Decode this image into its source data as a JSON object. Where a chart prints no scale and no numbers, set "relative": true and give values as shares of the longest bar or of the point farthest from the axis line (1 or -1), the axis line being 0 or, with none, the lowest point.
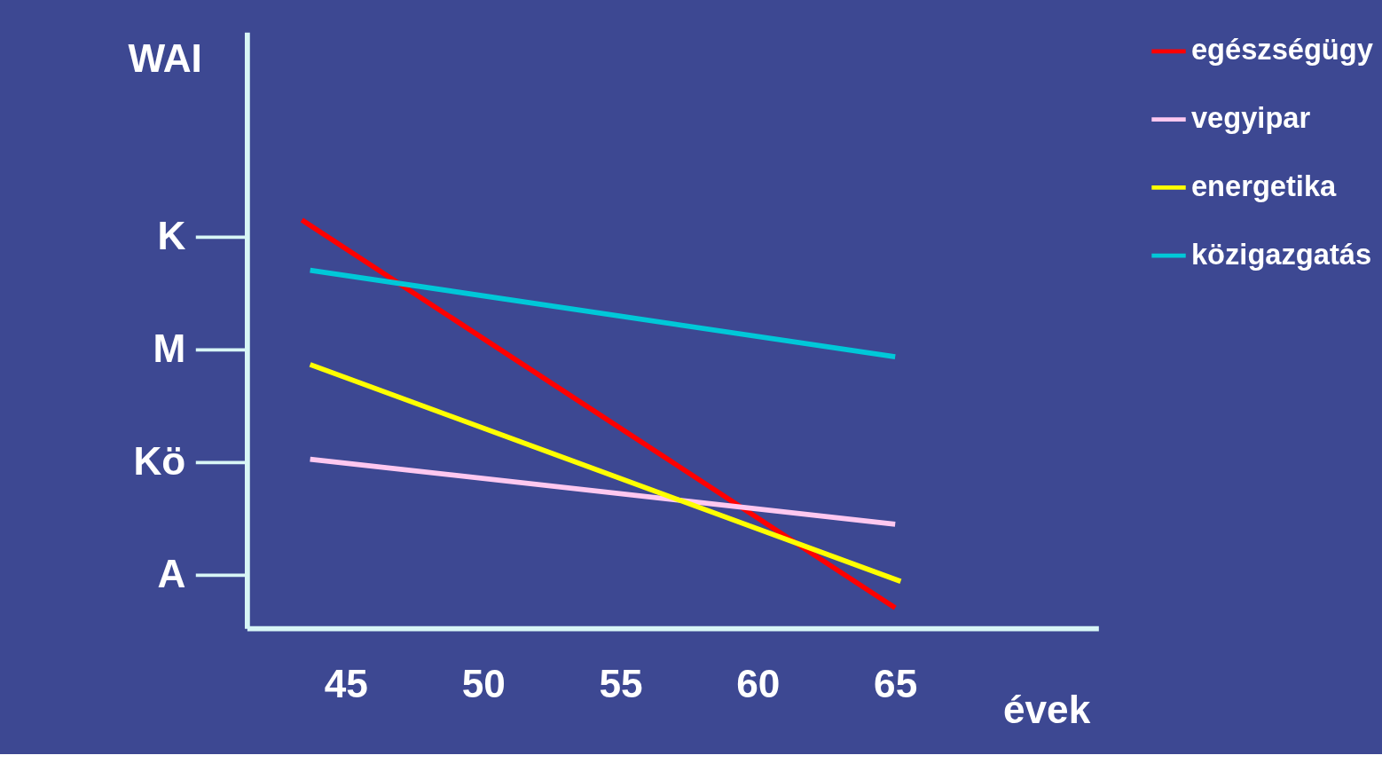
{
  "chart_data": {
    "type": "line",
    "ylabel": "WAI",
    "xlabel": "évek",
    "relative": true,
    "xlim": [
      41.4,
      72.4
    ],
    "xticks": [
      45,
      50,
      55,
      60,
      65
    ],
    "annotations": [
      "K",
      "M",
      "Kö",
      "A"
    ],
    "grid": false,
    "legend": "right",
    "line_style": "solid",
    "marker": "none",
    "series": [
      {
        "name": "egészségügy",
        "color": "#ff0000",
        "x": [
          43.4,
          65
        ],
        "values": [
          1.0,
          0.05
        ]
      },
      {
        "name": "vegyipar",
        "color": "#ffc8f0",
        "x": [
          43.7,
          65
        ],
        "values": [
          0.414,
          0.255
        ]
      },
      {
        "name": "energetika",
        "color": "#ffff00",
        "x": [
          43.7,
          65.2
        ],
        "values": [
          0.646,
          0.115
        ]
      },
      {
        "name": "közigazgatás",
        "color": "#00c8d8",
        "x": [
          43.7,
          65
        ],
        "values": [
          0.877,
          0.665
        ]
      }
    ]
  }
}
